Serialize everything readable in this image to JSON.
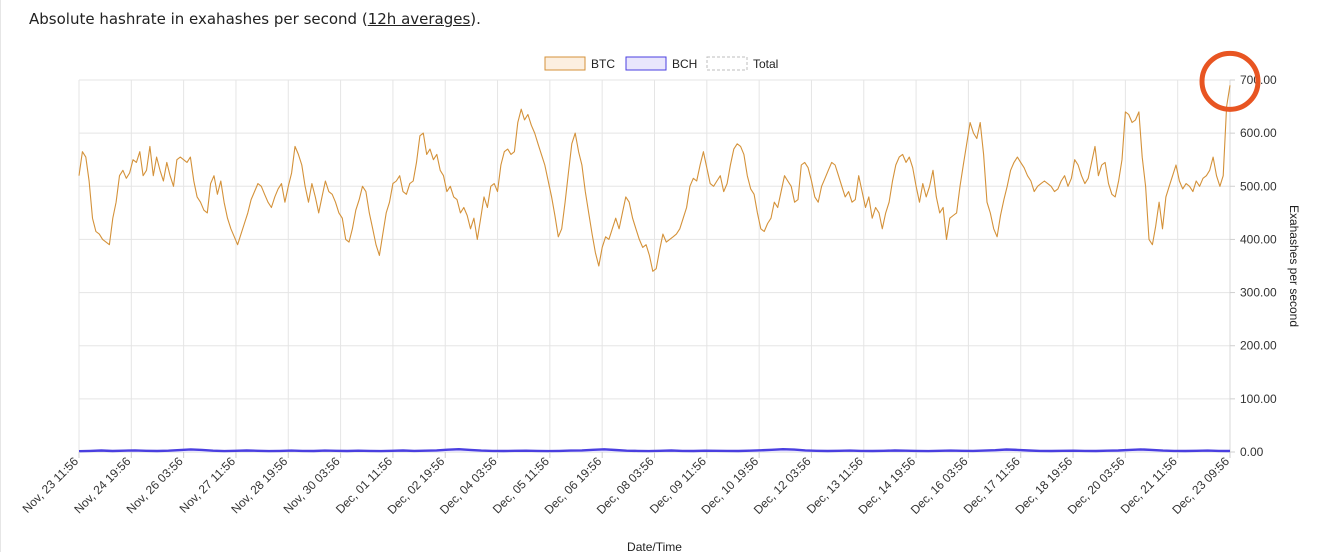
{
  "header": {
    "prefix": "Absolute hashrate in exahashes per second (",
    "link": "12h averages",
    "suffix": ")."
  },
  "colors": {
    "btc_line": "#d4923a",
    "btc_fill": "#fcefe0",
    "bch_line": "#4a3fe0",
    "bch_fill": "#e9e6fc",
    "total_border": "#bdbdbd",
    "grid": "#e5e5e5",
    "annotation": "#e85522"
  },
  "chart_data": {
    "type": "line",
    "xlabel": "Date/Time",
    "ylabel": "Exahashes per second",
    "ylim": [
      0,
      700
    ],
    "yticks": [
      "0.00",
      "100.00",
      "200.00",
      "300.00",
      "400.00",
      "500.00",
      "600.00",
      "700.00"
    ],
    "x_ticks": [
      "Nov, 23 11:56",
      "Nov, 24 19:56",
      "Nov, 26 03:56",
      "Nov, 27 11:56",
      "Nov, 28 19:56",
      "Nov, 30 03:56",
      "Dec, 01 11:56",
      "Dec, 02 19:56",
      "Dec, 04 03:56",
      "Dec, 05 11:56",
      "Dec, 06 19:56",
      "Dec, 08 03:56",
      "Dec, 09 11:56",
      "Dec, 10 19:56",
      "Dec, 12 03:56",
      "Dec, 13 11:56",
      "Dec, 14 19:56",
      "Dec, 16 03:56",
      "Dec, 17 11:56",
      "Dec, 18 19:56",
      "Dec, 20 03:56",
      "Dec, 21 11:56",
      "Dec, 23 09:56"
    ],
    "legend": [
      "BTC",
      "BCH",
      "Total"
    ],
    "legend_position": "top",
    "grid": true,
    "series": [
      {
        "name": "BTC",
        "values": [
          520,
          565,
          555,
          510,
          440,
          415,
          410,
          400,
          395,
          390,
          440,
          470,
          520,
          530,
          515,
          525,
          550,
          545,
          565,
          520,
          530,
          575,
          520,
          555,
          530,
          510,
          545,
          520,
          500,
          550,
          555,
          550,
          545,
          555,
          510,
          480,
          470,
          455,
          450,
          505,
          520,
          485,
          510,
          470,
          440,
          420,
          405,
          390,
          410,
          430,
          450,
          475,
          490,
          505,
          500,
          485,
          470,
          460,
          480,
          495,
          505,
          470,
          500,
          525,
          575,
          560,
          540,
          500,
          470,
          505,
          480,
          450,
          480,
          510,
          490,
          485,
          470,
          450,
          440,
          400,
          395,
          420,
          455,
          475,
          500,
          490,
          450,
          420,
          390,
          370,
          410,
          450,
          470,
          505,
          510,
          520,
          490,
          485,
          505,
          510,
          545,
          595,
          600,
          560,
          570,
          550,
          560,
          530,
          520,
          490,
          500,
          480,
          475,
          450,
          460,
          445,
          420,
          440,
          400,
          440,
          480,
          460,
          500,
          505,
          490,
          540,
          565,
          570,
          560,
          565,
          620,
          645,
          625,
          635,
          615,
          600,
          580,
          560,
          540,
          510,
          480,
          445,
          405,
          420,
          470,
          525,
          580,
          600,
          565,
          540,
          490,
          450,
          410,
          375,
          350,
          385,
          405,
          400,
          420,
          440,
          420,
          450,
          480,
          470,
          440,
          420,
          400,
          385,
          390,
          370,
          340,
          345,
          380,
          410,
          395,
          400,
          405,
          410,
          420,
          440,
          460,
          500,
          515,
          510,
          540,
          565,
          535,
          505,
          500,
          510,
          520,
          490,
          505,
          540,
          570,
          580,
          575,
          560,
          520,
          495,
          485,
          450,
          420,
          415,
          430,
          440,
          470,
          460,
          490,
          520,
          510,
          500,
          470,
          475,
          540,
          545,
          535,
          510,
          480,
          470,
          500,
          515,
          530,
          545,
          540,
          520,
          500,
          480,
          490,
          470,
          475,
          520,
          490,
          460,
          480,
          440,
          460,
          450,
          420,
          450,
          470,
          510,
          540,
          555,
          560,
          545,
          555,
          535,
          500,
          470,
          505,
          480,
          500,
          530,
          480,
          450,
          460,
          400,
          440,
          445,
          450,
          500,
          540,
          580,
          620,
          600,
          590,
          620,
          560,
          470,
          450,
          420,
          405,
          445,
          475,
          500,
          530,
          545,
          555,
          545,
          535,
          520,
          510,
          490,
          500,
          505,
          510,
          505,
          500,
          490,
          495,
          510,
          520,
          500,
          515,
          550,
          540,
          520,
          505,
          515,
          545,
          575,
          520,
          540,
          545,
          505,
          485,
          480,
          510,
          550,
          640,
          635,
          620,
          625,
          640,
          555,
          500,
          400,
          390,
          425,
          470,
          420,
          480,
          500,
          520,
          540,
          510,
          495,
          505,
          500,
          490,
          510,
          500,
          515,
          520,
          530,
          555,
          520,
          500,
          520,
          650,
          690
        ],
        "line_color": "#d4923a"
      },
      {
        "name": "BCH",
        "values": [
          1.5,
          2.1,
          2.8,
          1.9,
          2.4,
          3.0,
          2.2,
          1.8,
          2.5,
          3.6,
          4.8,
          3.9,
          2.4,
          1.7,
          2.2,
          2.9,
          2.3,
          1.6,
          2.0,
          2.7,
          2.1,
          1.9,
          2.6,
          2.2,
          1.8,
          2.4,
          2.0,
          1.7,
          2.3,
          2.9,
          2.1,
          2.5,
          3.1,
          4.4,
          5.2,
          4.0,
          2.6,
          2.0,
          1.8,
          2.2,
          2.5,
          2.0,
          1.6,
          2.1,
          2.6,
          3.0,
          4.2,
          5.0,
          3.8,
          2.4,
          2.0,
          1.7,
          2.3,
          2.8,
          2.1,
          1.9,
          2.4,
          2.2,
          2.0,
          1.8,
          2.5,
          3.2,
          4.1,
          5.3,
          4.6,
          3.1,
          2.2,
          1.9,
          2.3,
          2.6,
          2.1,
          1.8,
          2.2,
          2.9,
          2.4,
          2.0,
          1.7,
          2.3,
          2.7,
          2.2,
          2.0,
          2.6,
          3.4,
          4.7,
          3.9,
          2.8,
          2.1,
          1.8,
          2.3,
          2.5,
          2.0,
          1.9,
          2.4,
          2.8,
          3.9,
          4.9,
          4.0,
          2.7,
          2.1,
          1.8,
          2.2,
          2.6,
          2.0,
          1.9
        ],
        "line_color": "#4a3fe0"
      },
      {
        "name": "Total",
        "values": [],
        "line_color": "#bdbdbd"
      }
    ],
    "annotation": {
      "type": "circle",
      "target": "latest BTC value"
    }
  }
}
